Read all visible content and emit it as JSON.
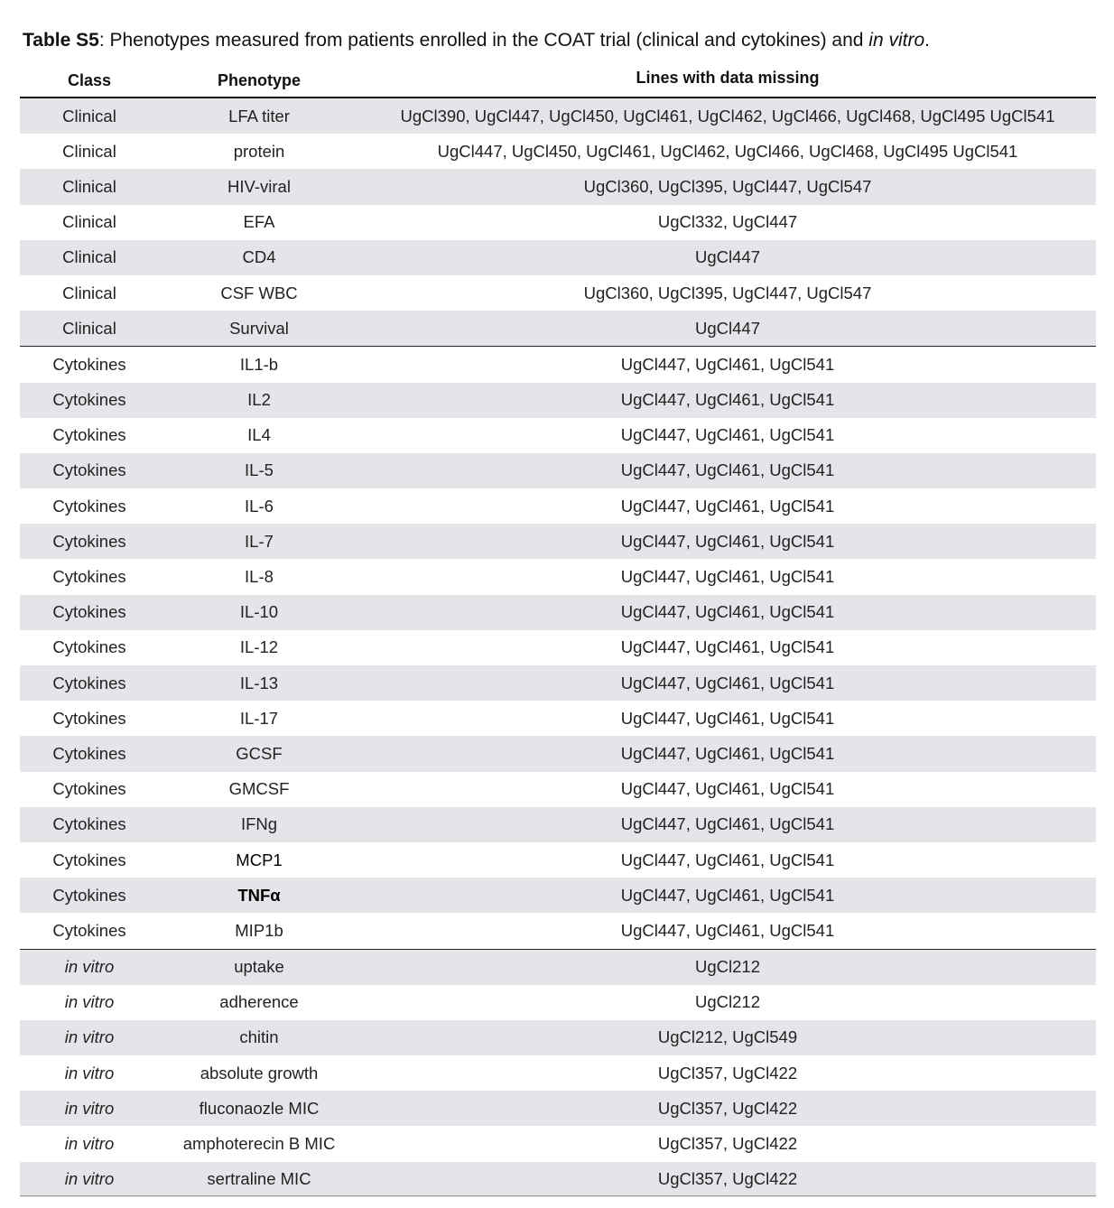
{
  "caption": {
    "label": "Table S5",
    "text_before": ": Phenotypes measured from patients enrolled in the COAT trial (clinical and cytokines) and ",
    "text_italic": "in vitro",
    "text_after": "."
  },
  "table": {
    "headers": {
      "class": "Class",
      "phenotype": "Phenotype",
      "lines": "Lines with data missing"
    },
    "rows": [
      {
        "class": "Clinical",
        "phenotype": "LFA titer",
        "lines": "UgCl390, UgCl447, UgCl450, UgCl461, UgCl462, UgCl466, UgCl468, UgCl495 UgCl541"
      },
      {
        "class": "Clinical",
        "phenotype": "protein",
        "lines": "UgCl447, UgCl450, UgCl461, UgCl462, UgCl466, UgCl468, UgCl495 UgCl541"
      },
      {
        "class": "Clinical",
        "phenotype": "HIV-viral",
        "lines": "UgCl360, UgCl395, UgCl447, UgCl547"
      },
      {
        "class": "Clinical",
        "phenotype": "EFA",
        "lines": "UgCl332, UgCl447"
      },
      {
        "class": "Clinical",
        "phenotype": "CD4",
        "lines": "UgCl447"
      },
      {
        "class": "Clinical",
        "phenotype": "CSF WBC",
        "lines": "UgCl360, UgCl395, UgCl447, UgCl547"
      },
      {
        "class": "Clinical",
        "phenotype": "Survival",
        "lines": "UgCl447"
      },
      {
        "class": "Cytokines",
        "phenotype": "IL1-b",
        "lines": "UgCl447, UgCl461, UgCl541"
      },
      {
        "class": "Cytokines",
        "phenotype": "IL2",
        "lines": "UgCl447, UgCl461, UgCl541"
      },
      {
        "class": "Cytokines",
        "phenotype": "IL4",
        "lines": "UgCl447, UgCl461, UgCl541"
      },
      {
        "class": "Cytokines",
        "phenotype": "IL-5",
        "lines": "UgCl447, UgCl461, UgCl541"
      },
      {
        "class": "Cytokines",
        "phenotype": "IL-6",
        "lines": "UgCl447, UgCl461, UgCl541"
      },
      {
        "class": "Cytokines",
        "phenotype": "IL-7",
        "lines": "UgCl447, UgCl461, UgCl541"
      },
      {
        "class": "Cytokines",
        "phenotype": "IL-8",
        "lines": "UgCl447, UgCl461, UgCl541"
      },
      {
        "class": "Cytokines",
        "phenotype": "IL-10",
        "lines": "UgCl447, UgCl461, UgCl541"
      },
      {
        "class": "Cytokines",
        "phenotype": "IL-12",
        "lines": "UgCl447, UgCl461, UgCl541"
      },
      {
        "class": "Cytokines",
        "phenotype": "IL-13",
        "lines": "UgCl447, UgCl461, UgCl541"
      },
      {
        "class": "Cytokines",
        "phenotype": "IL-17",
        "lines": "UgCl447, UgCl461, UgCl541"
      },
      {
        "class": "Cytokines",
        "phenotype": "GCSF",
        "lines": "UgCl447, UgCl461, UgCl541"
      },
      {
        "class": "Cytokines",
        "phenotype": "GMCSF",
        "lines": "UgCl447, UgCl461, UgCl541"
      },
      {
        "class": "Cytokines",
        "phenotype": "IFNg",
        "lines": "UgCl447, UgCl461, UgCl541"
      },
      {
        "class": "Cytokines",
        "phenotype": "MCP1",
        "lines": "UgCl447, UgCl461, UgCl541"
      },
      {
        "class": "Cytokines",
        "phenotype": "TNFα",
        "lines": "UgCl447, UgCl461, UgCl541"
      },
      {
        "class": "Cytokines",
        "phenotype": "MIP1b",
        "lines": "UgCl447, UgCl461, UgCl541"
      },
      {
        "class": "in vitro",
        "phenotype": "uptake",
        "lines": "UgCl212"
      },
      {
        "class": "in vitro",
        "phenotype": "adherence",
        "lines": "UgCl212"
      },
      {
        "class": "in vitro",
        "phenotype": "chitin",
        "lines": "UgCl212, UgCl549"
      },
      {
        "class": "in vitro",
        "phenotype": "absolute growth",
        "lines": "UgCl357, UgCl422"
      },
      {
        "class": "in vitro",
        "phenotype": "fluconaozle MIC",
        "lines": "UgCl357, UgCl422"
      },
      {
        "class": "in vitro",
        "phenotype": "amphoterecin B MIC",
        "lines": "UgCl357, UgCl422"
      },
      {
        "class": "in vitro",
        "phenotype": "sertraline MIC",
        "lines": "UgCl357, UgCl422"
      }
    ]
  }
}
